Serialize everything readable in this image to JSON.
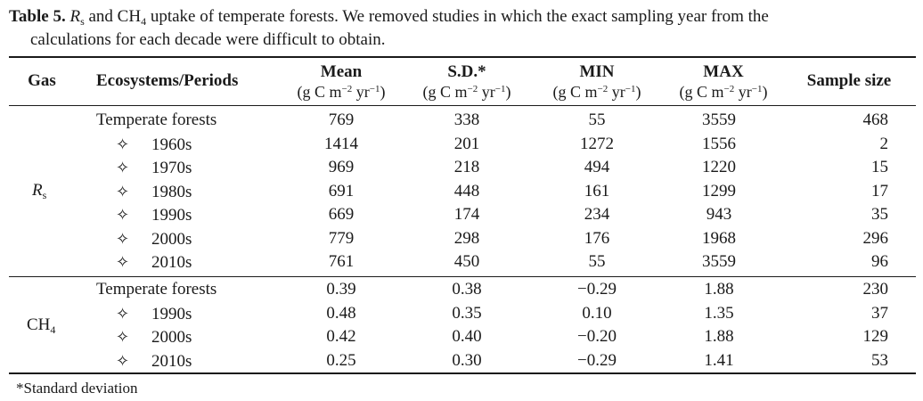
{
  "caption": {
    "label": "Table 5.",
    "rs_symbol": "R",
    "rs_sub": "s",
    "text_a": " and CH",
    "ch4_sub": "4",
    "text_b": " uptake of temperate forests. We removed studies in which the exact sampling year from the",
    "text_c": "calculations for each decade were difficult to obtain."
  },
  "headers": {
    "gas": "Gas",
    "eco": "Ecosystems/Periods",
    "mean": "Mean",
    "sd": "S.D.*",
    "min": "MIN",
    "max": "MAX",
    "n": "Sample size",
    "unit_a": "(g C m",
    "unit_exp1": "−2",
    "unit_b": "yr",
    "unit_exp2": "−1",
    "unit_c": ")"
  },
  "groups": {
    "rs": {
      "symbol": "R",
      "sub": "s",
      "rows": [
        {
          "label": "Temperate forests",
          "mean": "769",
          "sd": "338",
          "min": "55",
          "max": "3559",
          "n": "468"
        },
        {
          "label": "1960s",
          "mean": "1414",
          "sd": "201",
          "min": "1272",
          "max": "1556",
          "n": "2"
        },
        {
          "label": "1970s",
          "mean": "969",
          "sd": "218",
          "min": "494",
          "max": "1220",
          "n": "15"
        },
        {
          "label": "1980s",
          "mean": "691",
          "sd": "448",
          "min": "161",
          "max": "1299",
          "n": "17"
        },
        {
          "label": "1990s",
          "mean": "669",
          "sd": "174",
          "min": "234",
          "max": "943",
          "n": "35"
        },
        {
          "label": "2000s",
          "mean": "779",
          "sd": "298",
          "min": "176",
          "max": "1968",
          "n": "296"
        },
        {
          "label": "2010s",
          "mean": "761",
          "sd": "450",
          "min": "55",
          "max": "3559",
          "n": "96"
        }
      ]
    },
    "ch4": {
      "symbol": "CH",
      "sub": "4",
      "rows": [
        {
          "label": "Temperate forests",
          "mean": "0.39",
          "sd": "0.38",
          "min": "−0.29",
          "max": "1.88",
          "n": "230"
        },
        {
          "label": "1990s",
          "mean": "0.48",
          "sd": "0.35",
          "min": "0.10",
          "max": "1.35",
          "n": "37"
        },
        {
          "label": "2000s",
          "mean": "0.42",
          "sd": "0.40",
          "min": "−0.20",
          "max": "1.88",
          "n": "129"
        },
        {
          "label": "2010s",
          "mean": "0.25",
          "sd": "0.30",
          "min": "−0.29",
          "max": "1.41",
          "n": "53"
        }
      ]
    }
  },
  "sub_marker": "✧",
  "footnote": "*Standard deviation"
}
